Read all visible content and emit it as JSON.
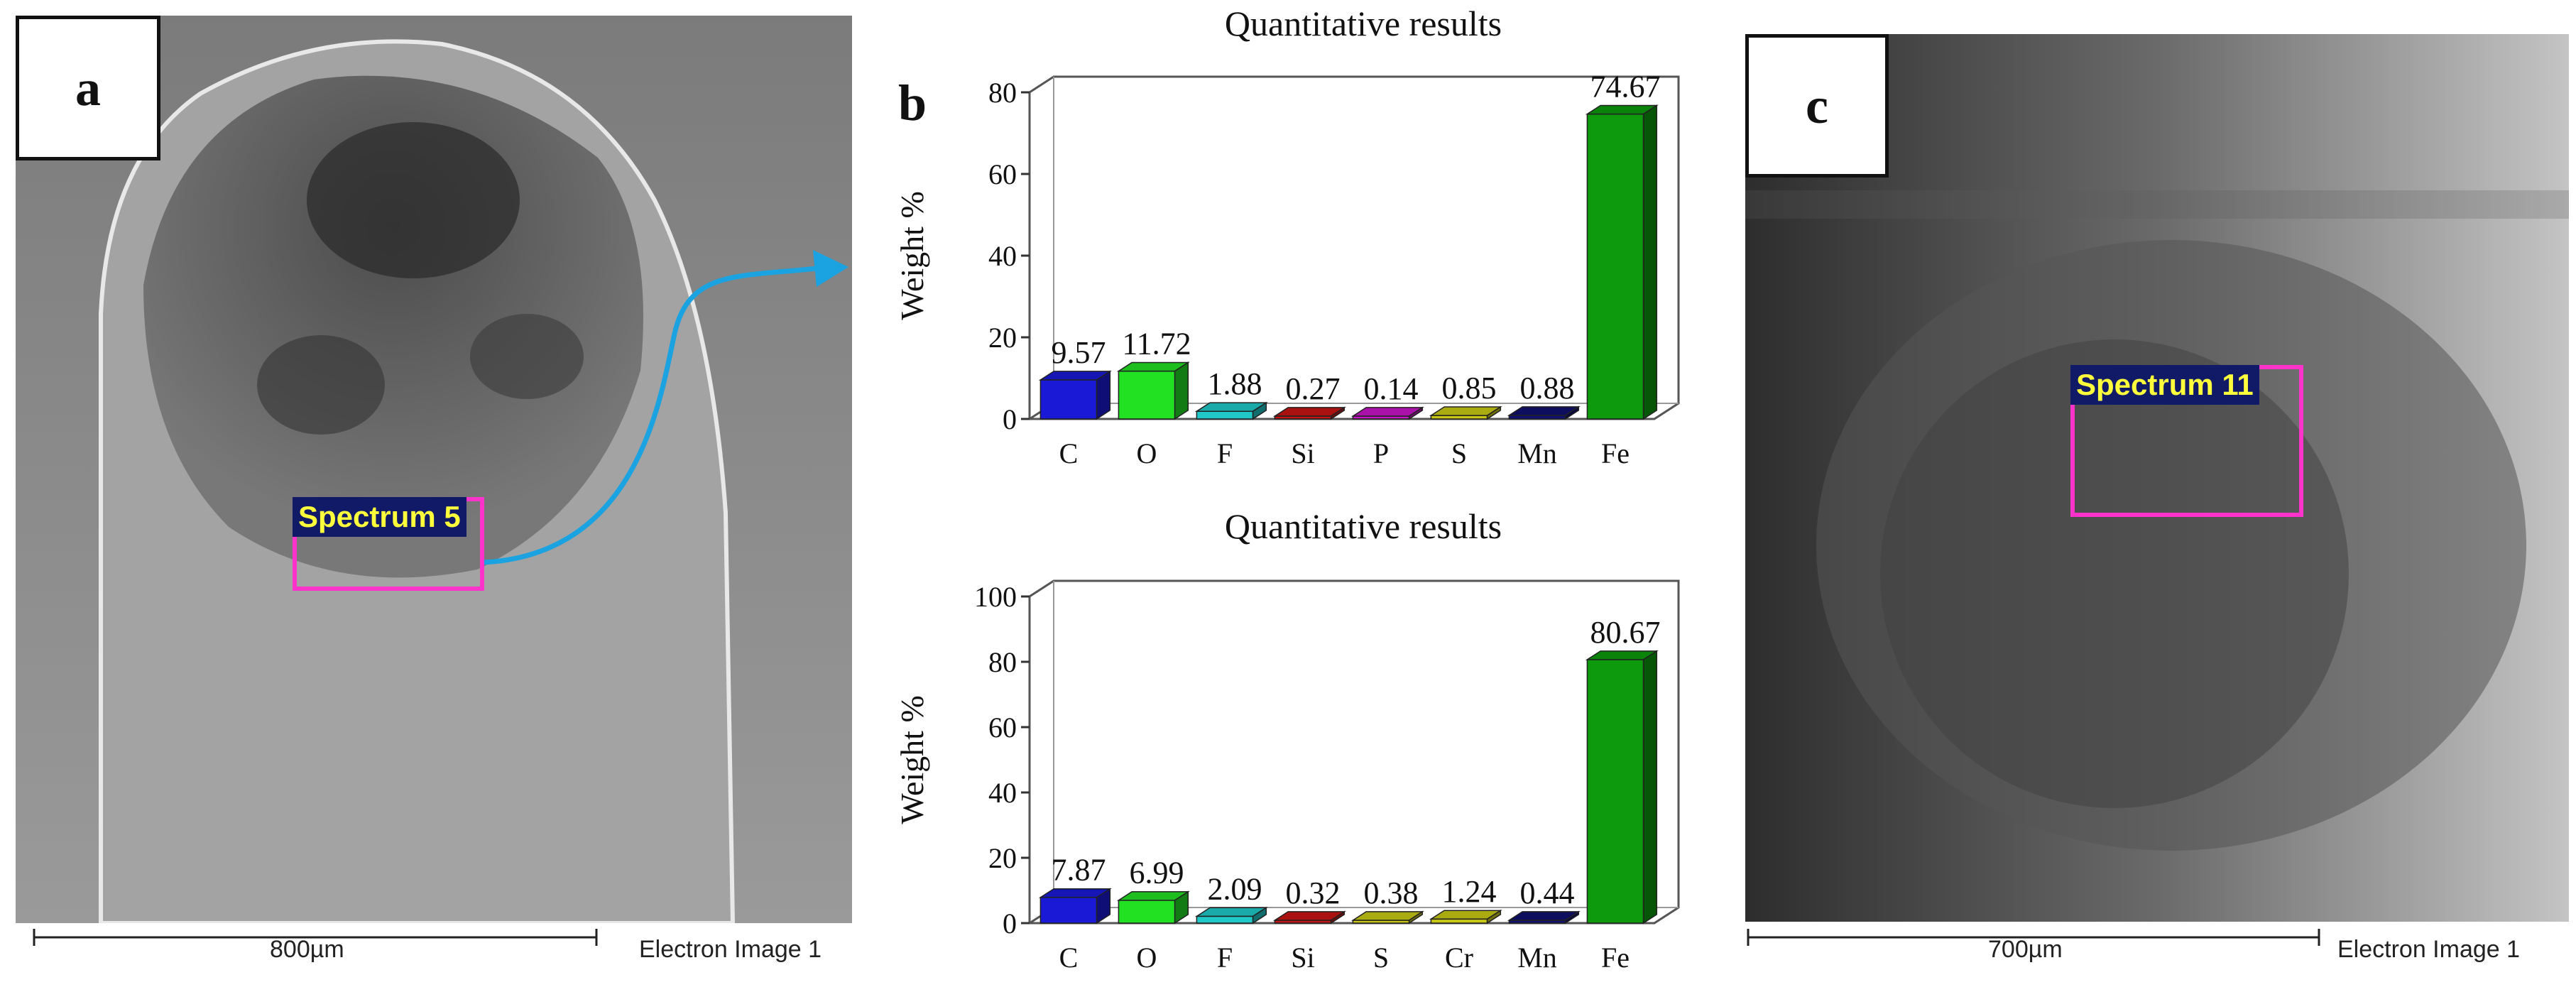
{
  "panels": {
    "a": {
      "label": "a",
      "spectrum": "Spectrum 5",
      "scale": "800µm",
      "image_caption": "Electron Image 1"
    },
    "b": {
      "label": "b"
    },
    "c": {
      "label": "c",
      "spectrum": "Spectrum 11",
      "scale": "700µm",
      "image_caption": "Electron Image 1"
    }
  },
  "colors": {
    "C": "#1a1ad6",
    "O": "#22e022",
    "F": "#20c8c8",
    "Si": "#c81414",
    "P": "#c814c8",
    "S": "#c8c814",
    "Cr": "#c8c814",
    "Mn": "#101070",
    "Fe": "#0d9a0d",
    "arrow": "#1aa3e0",
    "spectrum_box": "#ff33cc"
  },
  "chart_data": [
    {
      "type": "bar",
      "title": "Quantitative results",
      "ylabel": "Weight %",
      "xlabel": "",
      "ylim": [
        0,
        80
      ],
      "yticks": [
        "0",
        "20",
        "40",
        "60",
        "80"
      ],
      "categories": [
        "C",
        "O",
        "F",
        "Si",
        "P",
        "S",
        "Mn",
        "Fe"
      ],
      "values": [
        9.57,
        11.72,
        1.88,
        0.27,
        0.14,
        0.85,
        0.88,
        74.67
      ],
      "value_labels": [
        "9.57",
        "11.72",
        "1.88",
        "0.27",
        "0.14",
        "0.85",
        "0.88",
        "74.67"
      ]
    },
    {
      "type": "bar",
      "title": "Quantitative results",
      "ylabel": "Weight %",
      "xlabel": "",
      "ylim": [
        0,
        100
      ],
      "yticks": [
        "0",
        "20",
        "40",
        "60",
        "80",
        "100"
      ],
      "categories": [
        "C",
        "O",
        "F",
        "Si",
        "S",
        "Cr",
        "Mn",
        "Fe"
      ],
      "values": [
        7.87,
        6.99,
        2.09,
        0.32,
        0.38,
        1.24,
        0.44,
        80.67
      ],
      "value_labels": [
        "7.87",
        "6.99",
        "2.09",
        "0.32",
        "0.38",
        "1.24",
        "0.44",
        "80.67"
      ]
    }
  ]
}
